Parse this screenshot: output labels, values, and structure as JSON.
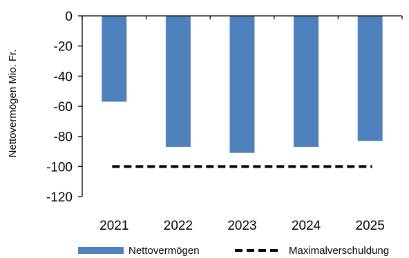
{
  "chart_data": {
    "type": "bar",
    "title": "",
    "xlabel": "",
    "ylabel": "Nettovermögen Mio. Fr.",
    "categories": [
      "2021",
      "2022",
      "2023",
      "2024",
      "2025"
    ],
    "series": [
      {
        "name": "Nettovermögen",
        "type": "bar",
        "color": "#4f81bd",
        "values": [
          -57,
          -87,
          -91,
          -87,
          -83
        ]
      },
      {
        "name": "Maximalverschuldung",
        "type": "line",
        "style": "dashed",
        "color": "#000000",
        "values": [
          -100,
          -100,
          -100,
          -100,
          -100
        ]
      }
    ],
    "ylim": [
      -120,
      0
    ],
    "yticks": [
      0,
      -20,
      -40,
      -60,
      -80,
      -100,
      -120
    ],
    "ytick_labels": [
      "0",
      "-20",
      "-40",
      "-60",
      "-80",
      "-100",
      "-120"
    ],
    "grid": false,
    "x_axis_position": "top (at y = 0)",
    "legend_position": "bottom"
  }
}
